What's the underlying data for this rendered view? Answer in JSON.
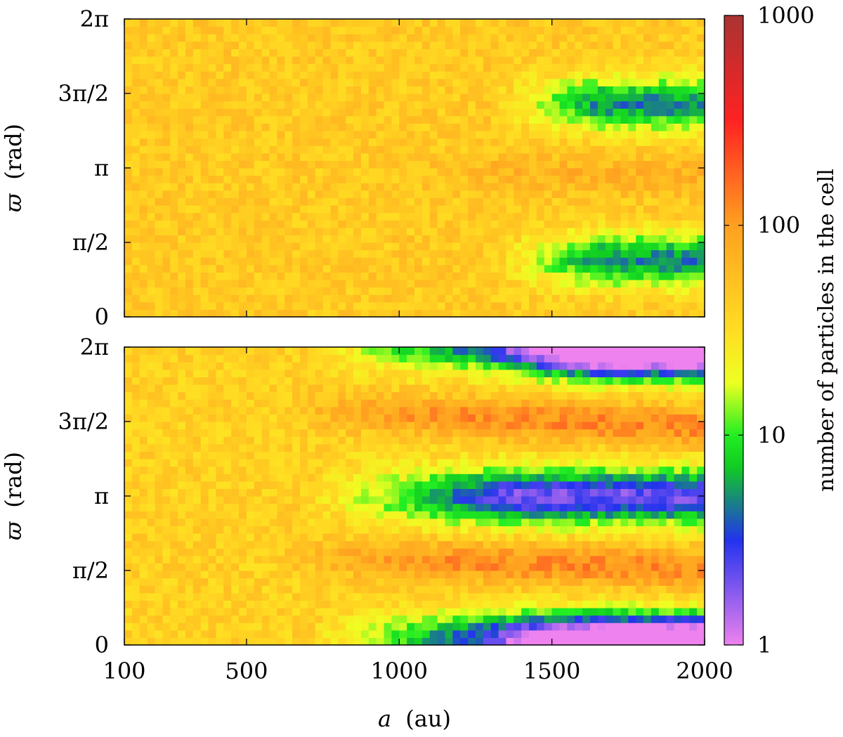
{
  "chart_data": [
    {
      "type": "heatmap",
      "panel": "top",
      "xlabel_var": "a",
      "xlabel_unit": "(au)",
      "ylabel_var": "ϖ",
      "ylabel_unit": "(rad)",
      "xlim": [
        100,
        2000
      ],
      "ylim": [
        0,
        6.2832
      ],
      "x_ticks": [
        {
          "value": 100,
          "label": "100"
        },
        {
          "value": 500,
          "label": "500"
        },
        {
          "value": 1000,
          "label": "1000"
        },
        {
          "value": 1500,
          "label": "1500"
        },
        {
          "value": 2000,
          "label": "2000"
        }
      ],
      "y_ticks": [
        {
          "value": 0,
          "label": "0"
        },
        {
          "value": 1.5708,
          "label": "π/2"
        },
        {
          "value": 3.1416,
          "label": "π"
        },
        {
          "value": 4.7124,
          "label": "3π/2"
        },
        {
          "value": 6.2832,
          "label": "2π"
        }
      ],
      "bins": {
        "nx": 76,
        "ny": 40,
        "x_edges": [
          100,
          2000
        ],
        "y_edges": [
          0,
          6.2832
        ]
      },
      "typical_count": 45,
      "features": [
        {
          "kind": "enhanced",
          "center_a": [
            1000,
            2000
          ],
          "center_varpi": [
            3.14,
            2.95
          ],
          "peak_count": 70
        },
        {
          "kind": "depleted",
          "a_range": [
            1300,
            2000
          ],
          "varpi": 4.5,
          "min_count": 5
        },
        {
          "kind": "depleted",
          "a_range": [
            1300,
            2000
          ],
          "varpi": 1.2,
          "min_count": 5
        }
      ]
    },
    {
      "type": "heatmap",
      "panel": "bottom",
      "xlabel_var": "a",
      "xlabel_unit": "(au)",
      "ylabel_var": "ϖ",
      "ylabel_unit": "(rad)",
      "xlim": [
        100,
        2000
      ],
      "ylim": [
        0,
        6.2832
      ],
      "x_ticks": [
        {
          "value": 100,
          "label": "100"
        },
        {
          "value": 500,
          "label": "500"
        },
        {
          "value": 1000,
          "label": "1000"
        },
        {
          "value": 1500,
          "label": "1500"
        },
        {
          "value": 2000,
          "label": "2000"
        }
      ],
      "y_ticks": [
        {
          "value": 0,
          "label": "0"
        },
        {
          "value": 1.5708,
          "label": "π/2"
        },
        {
          "value": 3.1416,
          "label": "π"
        },
        {
          "value": 4.7124,
          "label": "3π/2"
        },
        {
          "value": 6.2832,
          "label": "2π"
        }
      ],
      "bins": {
        "nx": 76,
        "ny": 40,
        "x_edges": [
          100,
          2000
        ],
        "y_edges": [
          0,
          6.2832
        ]
      },
      "typical_count": 40,
      "features": [
        {
          "kind": "enhanced",
          "center_a": [
            600,
            2000
          ],
          "center_varpi": [
            5.0,
            4.6
          ],
          "peak_count": 120
        },
        {
          "kind": "enhanced",
          "center_a": [
            600,
            2000
          ],
          "center_varpi": [
            1.9,
            1.6
          ],
          "peak_count": 120
        },
        {
          "kind": "depleted",
          "a_range": [
            700,
            2000
          ],
          "varpi": 3.14,
          "min_count": 2
        },
        {
          "kind": "depleted",
          "a_range": [
            700,
            2000
          ],
          "varpi": 0.1,
          "min_count": 2
        },
        {
          "kind": "depleted",
          "a_range": [
            1300,
            2000
          ],
          "varpi": 6.2,
          "min_count": 2
        }
      ]
    }
  ],
  "colorbar": {
    "label": "number of particles in the cell",
    "scale": "log",
    "range": [
      1,
      1000
    ],
    "ticks": [
      {
        "value": 1,
        "label": "1"
      },
      {
        "value": 10,
        "label": "10"
      },
      {
        "value": 100,
        "label": "100"
      },
      {
        "value": 1000,
        "label": "1000"
      }
    ],
    "colormap": [
      {
        "log10": 0.0,
        "color": "#ee82ee"
      },
      {
        "log10": 0.5,
        "color": "#2233ee"
      },
      {
        "log10": 0.85,
        "color": "#11cc22"
      },
      {
        "log10": 1.0,
        "color": "#22ee22"
      },
      {
        "log10": 1.25,
        "color": "#eeff22"
      },
      {
        "log10": 1.5,
        "color": "#ffdd22"
      },
      {
        "log10": 2.0,
        "color": "#ffa020"
      },
      {
        "log10": 2.5,
        "color": "#ff2222"
      },
      {
        "log10": 3.0,
        "color": "#aa3333"
      }
    ]
  }
}
